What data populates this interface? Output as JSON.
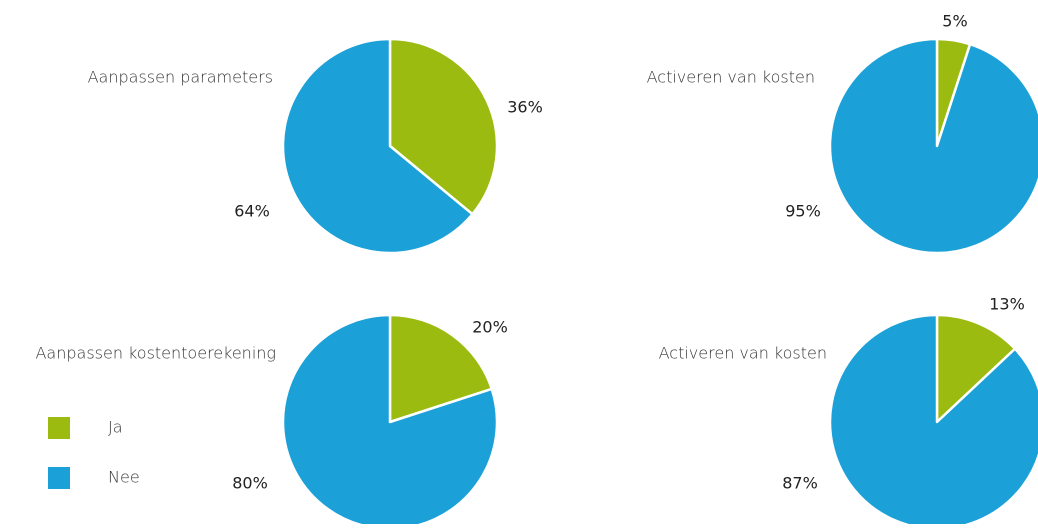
{
  "chart_data": [
    {
      "type": "pie",
      "title": "Aanpassen parameters",
      "categories": [
        "Ja",
        "Nee"
      ],
      "values": [
        36,
        64
      ],
      "value_labels": [
        "36%",
        "64%"
      ],
      "colors": [
        "#9bbb10",
        "#1ba1d8"
      ]
    },
    {
      "type": "pie",
      "title": "Activeren van kosten",
      "categories": [
        "Ja",
        "Nee"
      ],
      "values": [
        5,
        95
      ],
      "value_labels": [
        "5%",
        "95%"
      ],
      "colors": [
        "#9bbb10",
        "#1ba1d8"
      ]
    },
    {
      "type": "pie",
      "title": "Aanpassen kostentoerekening",
      "categories": [
        "Ja",
        "Nee"
      ],
      "values": [
        20,
        80
      ],
      "value_labels": [
        "20%",
        "80%"
      ],
      "colors": [
        "#9bbb10",
        "#1ba1d8"
      ]
    },
    {
      "type": "pie",
      "title": "Activeren van kosten",
      "categories": [
        "Ja",
        "Nee"
      ],
      "values": [
        13,
        87
      ],
      "value_labels": [
        "13%",
        "87%"
      ],
      "colors": [
        "#9bbb10",
        "#1ba1d8"
      ]
    }
  ]
}
